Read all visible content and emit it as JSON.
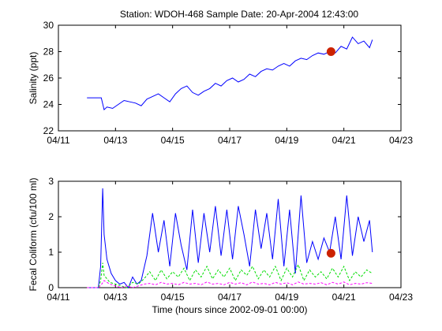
{
  "title": "Station: WDOH-468  Sample Date: 20-Apr-2004 12:43:00",
  "chart_data": [
    {
      "type": "line",
      "ylabel": "Salinity (ppt)",
      "xlabel": "",
      "xlim": [
        0,
        12
      ],
      "ylim": [
        22,
        30
      ],
      "x_ticks": [
        0,
        2,
        4,
        6,
        8,
        10,
        12
      ],
      "x_tick_labels": [
        "04/11",
        "04/13",
        "04/15",
        "04/17",
        "04/19",
        "04/21",
        "04/23"
      ],
      "y_ticks": [
        22,
        24,
        26,
        28,
        30
      ],
      "y_tick_labels": [
        "22",
        "24",
        "26",
        "28",
        "30"
      ],
      "series": [
        {
          "color": "#0000ff",
          "x": [
            1.0,
            1.5,
            1.6,
            1.7,
            1.9,
            2.1,
            2.3,
            2.5,
            2.7,
            2.9,
            3.1,
            3.3,
            3.5,
            3.7,
            3.9,
            4.1,
            4.3,
            4.5,
            4.7,
            4.9,
            5.1,
            5.3,
            5.5,
            5.7,
            5.9,
            6.1,
            6.3,
            6.5,
            6.7,
            6.9,
            7.1,
            7.3,
            7.5,
            7.7,
            7.9,
            8.1,
            8.3,
            8.5,
            8.7,
            8.9,
            9.1,
            9.3,
            9.5,
            9.7,
            9.9,
            10.1,
            10.3,
            10.5,
            10.7,
            10.9,
            11.0
          ],
          "y": [
            24.5,
            24.5,
            23.6,
            23.8,
            23.7,
            24.0,
            24.3,
            24.2,
            24.1,
            23.9,
            24.4,
            24.6,
            24.8,
            24.5,
            24.2,
            24.8,
            25.2,
            25.4,
            24.9,
            24.7,
            25.0,
            25.2,
            25.6,
            25.4,
            25.8,
            26.0,
            25.7,
            25.9,
            26.3,
            26.1,
            26.5,
            26.7,
            26.6,
            26.9,
            27.1,
            26.9,
            27.3,
            27.5,
            27.4,
            27.7,
            27.9,
            27.8,
            28.0,
            27.9,
            28.4,
            28.2,
            29.1,
            28.6,
            28.8,
            28.3,
            28.9
          ]
        }
      ],
      "marker": {
        "x": 9.55,
        "y": 28.0,
        "color": "#cc2200"
      }
    },
    {
      "type": "line",
      "ylabel": "Fecal Coliform (cfu/100 ml)",
      "xlabel": "Time (hours since 2002-09-01 00:00)",
      "xlim": [
        0,
        12
      ],
      "ylim": [
        0,
        3
      ],
      "x_ticks": [
        0,
        2,
        4,
        6,
        8,
        10,
        12
      ],
      "x_tick_labels": [
        "04/11",
        "04/13",
        "04/15",
        "04/17",
        "04/19",
        "04/21",
        "04/23"
      ],
      "y_ticks": [
        0,
        1,
        2,
        3
      ],
      "y_tick_labels": [
        "0",
        "1",
        "2",
        "3"
      ],
      "series": [
        {
          "color": "#0000ff",
          "x": [
            1.0,
            1.4,
            1.48,
            1.55,
            1.6,
            1.7,
            1.85,
            2.0,
            2.15,
            2.3,
            2.45,
            2.6,
            2.75,
            2.9,
            3.1,
            3.3,
            3.5,
            3.7,
            3.9,
            4.1,
            4.3,
            4.5,
            4.7,
            4.9,
            5.1,
            5.3,
            5.5,
            5.7,
            5.9,
            6.1,
            6.3,
            6.5,
            6.7,
            6.9,
            7.1,
            7.3,
            7.5,
            7.7,
            7.9,
            8.1,
            8.3,
            8.5,
            8.7,
            8.9,
            9.1,
            9.3,
            9.5,
            9.7,
            9.9,
            10.1,
            10.3,
            10.5,
            10.7,
            10.9,
            11.0
          ],
          "y": [
            0.0,
            0.0,
            0.6,
            2.8,
            1.5,
            0.8,
            0.4,
            0.2,
            0.1,
            0.15,
            0.0,
            0.3,
            0.1,
            0.2,
            0.9,
            2.1,
            1.0,
            1.9,
            0.6,
            2.1,
            1.2,
            0.5,
            2.2,
            0.7,
            2.1,
            1.0,
            2.3,
            0.9,
            2.2,
            0.8,
            2.3,
            1.5,
            0.6,
            2.2,
            1.1,
            2.1,
            0.8,
            2.5,
            0.6,
            2.2,
            0.4,
            2.6,
            0.7,
            1.3,
            0.8,
            1.4,
            1.0,
            2.0,
            0.8,
            2.6,
            0.9,
            2.0,
            1.3,
            1.9,
            1.0
          ]
        },
        {
          "color": "#00dd00",
          "style": "dashed",
          "x": [
            1.0,
            1.4,
            1.48,
            1.55,
            1.6,
            1.8,
            2.0,
            2.2,
            2.4,
            2.6,
            2.8,
            3.0,
            3.2,
            3.4,
            3.6,
            3.8,
            4.0,
            4.2,
            4.4,
            4.6,
            4.8,
            5.0,
            5.2,
            5.4,
            5.6,
            5.8,
            6.0,
            6.2,
            6.4,
            6.6,
            6.8,
            7.0,
            7.2,
            7.4,
            7.6,
            7.8,
            8.0,
            8.2,
            8.4,
            8.6,
            8.8,
            9.0,
            9.2,
            9.4,
            9.6,
            9.8,
            10.0,
            10.2,
            10.4,
            10.6,
            10.8,
            11.0
          ],
          "y": [
            0.0,
            0.0,
            0.2,
            0.7,
            0.35,
            0.15,
            0.1,
            0.05,
            0.0,
            0.15,
            0.1,
            0.25,
            0.45,
            0.2,
            0.5,
            0.25,
            0.45,
            0.3,
            0.55,
            0.2,
            0.5,
            0.3,
            0.6,
            0.25,
            0.5,
            0.3,
            0.55,
            0.2,
            0.5,
            0.35,
            0.6,
            0.25,
            0.5,
            0.3,
            0.6,
            0.2,
            0.55,
            0.3,
            0.65,
            0.2,
            0.5,
            0.3,
            0.45,
            0.25,
            0.55,
            0.3,
            0.6,
            0.2,
            0.45,
            0.3,
            0.5,
            0.4
          ]
        },
        {
          "color": "#ff00ff",
          "style": "dashed",
          "x": [
            1.0,
            1.4,
            1.5,
            1.6,
            1.8,
            2.0,
            2.2,
            2.4,
            2.6,
            2.8,
            3.0,
            3.2,
            3.4,
            3.6,
            3.8,
            4.0,
            4.2,
            4.4,
            4.6,
            4.8,
            5.0,
            5.2,
            5.4,
            5.6,
            5.8,
            6.0,
            6.2,
            6.4,
            6.6,
            6.8,
            7.0,
            7.2,
            7.4,
            7.6,
            7.8,
            8.0,
            8.2,
            8.4,
            8.6,
            8.8,
            9.0,
            9.2,
            9.4,
            9.6,
            9.8,
            10.0,
            10.2,
            10.4,
            10.6,
            10.8,
            11.0
          ],
          "y": [
            0.0,
            0.0,
            0.08,
            0.2,
            0.1,
            0.05,
            0.0,
            0.05,
            0.0,
            0.05,
            0.1,
            0.12,
            0.08,
            0.15,
            0.1,
            0.12,
            0.08,
            0.15,
            0.1,
            0.12,
            0.08,
            0.16,
            0.1,
            0.12,
            0.08,
            0.15,
            0.1,
            0.14,
            0.08,
            0.16,
            0.1,
            0.12,
            0.08,
            0.15,
            0.1,
            0.14,
            0.08,
            0.16,
            0.1,
            0.12,
            0.1,
            0.14,
            0.08,
            0.15,
            0.1,
            0.16,
            0.08,
            0.12,
            0.1,
            0.14,
            0.12
          ]
        }
      ],
      "marker": {
        "x": 9.55,
        "y": 0.97,
        "color": "#cc2200"
      }
    }
  ]
}
